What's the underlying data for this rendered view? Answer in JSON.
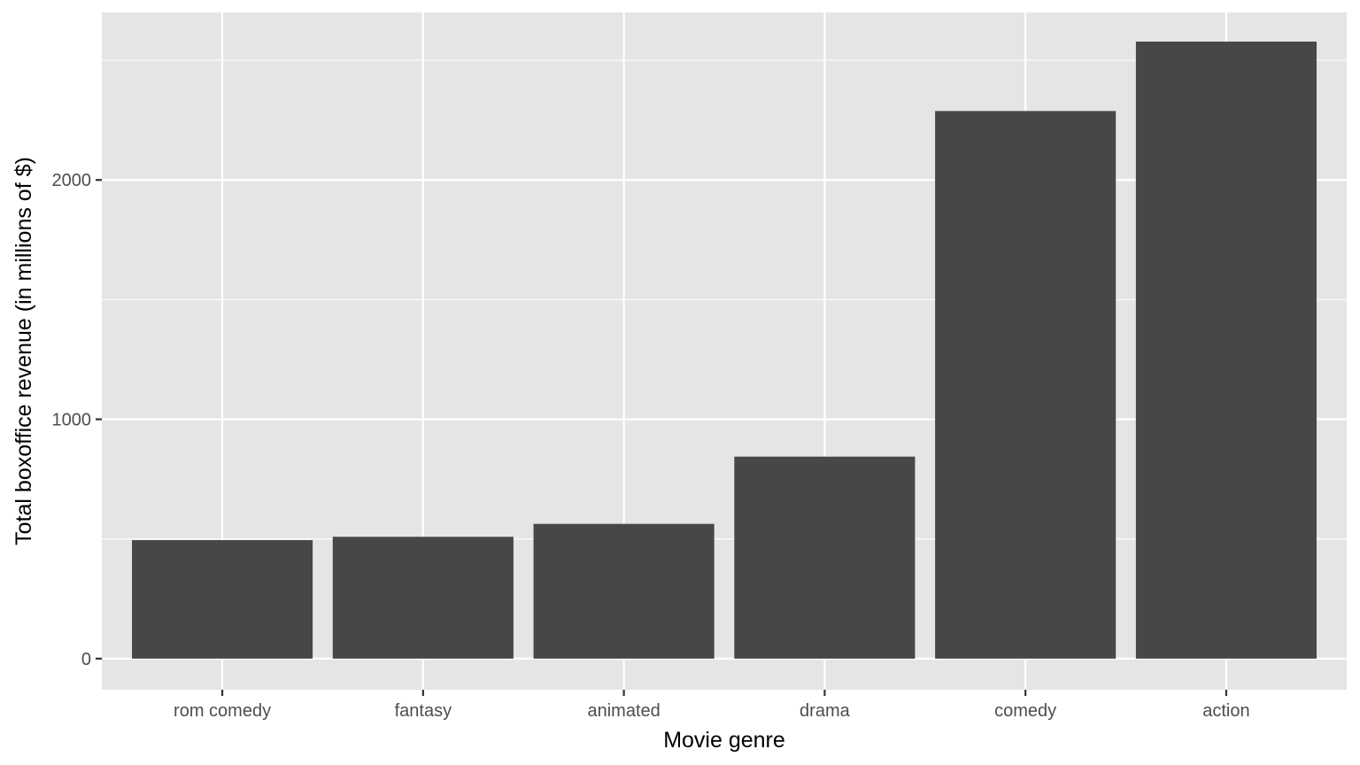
{
  "chart_data": {
    "type": "bar",
    "title": "",
    "xlabel": "Movie genre",
    "ylabel": "Total boxoffice revenue (in millions of $)",
    "categories": [
      "rom comedy",
      "fantasy",
      "animated",
      "drama",
      "comedy",
      "action"
    ],
    "values": [
      495,
      509,
      563,
      844,
      2288,
      2578
    ],
    "ylim": [
      -130,
      2700
    ],
    "yticks": [
      0,
      1000,
      2000
    ],
    "yticks_labels": [
      "0",
      "1000",
      "2000"
    ],
    "minor_yticks": [
      500,
      1500,
      2500
    ],
    "grid": true,
    "legend": "none",
    "colors": {
      "panel_background": "#e5e5e5",
      "grid": "#ffffff",
      "bar": "#474747",
      "tick": "#333333",
      "tick_label": "#4d4d4d",
      "axis_title": "#000000"
    }
  }
}
